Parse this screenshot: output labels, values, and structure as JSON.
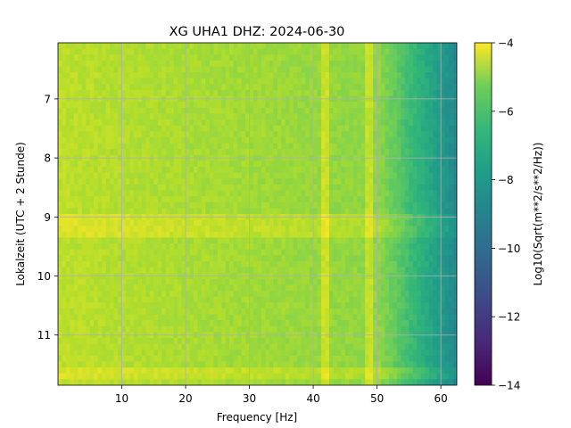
{
  "chart_data": {
    "type": "heatmap",
    "title": "XG UHA1  DHZ: 2024-06-30",
    "xlabel": "Frequency [Hz]",
    "ylabel": "Lokalzeit (UTC + 2 Stunde)",
    "colorbar_label": "Log10(Sqrt(m**2/s**2/Hz))",
    "colormap": "viridis",
    "xlim": [
      0,
      62.5
    ],
    "ylim": [
      11.85,
      6.05
    ],
    "y_inverted": true,
    "clim": [
      -14,
      -4
    ],
    "x_ticks": [
      10,
      20,
      30,
      40,
      50,
      60
    ],
    "y_ticks": [
      7,
      8,
      9,
      10,
      11
    ],
    "colorbar_ticks": [
      -4,
      -6,
      -8,
      -10,
      -12,
      -14
    ],
    "grid": true,
    "features": {
      "background_level_low_freq": -5.0,
      "background_level_high_freq": -8.5,
      "rolloff_start_hz": 50,
      "spectral_lines_hz": [
        41.5,
        48.5
      ],
      "horizontal_bands_h": [
        9.0,
        9.2,
        11.6
      ]
    }
  }
}
